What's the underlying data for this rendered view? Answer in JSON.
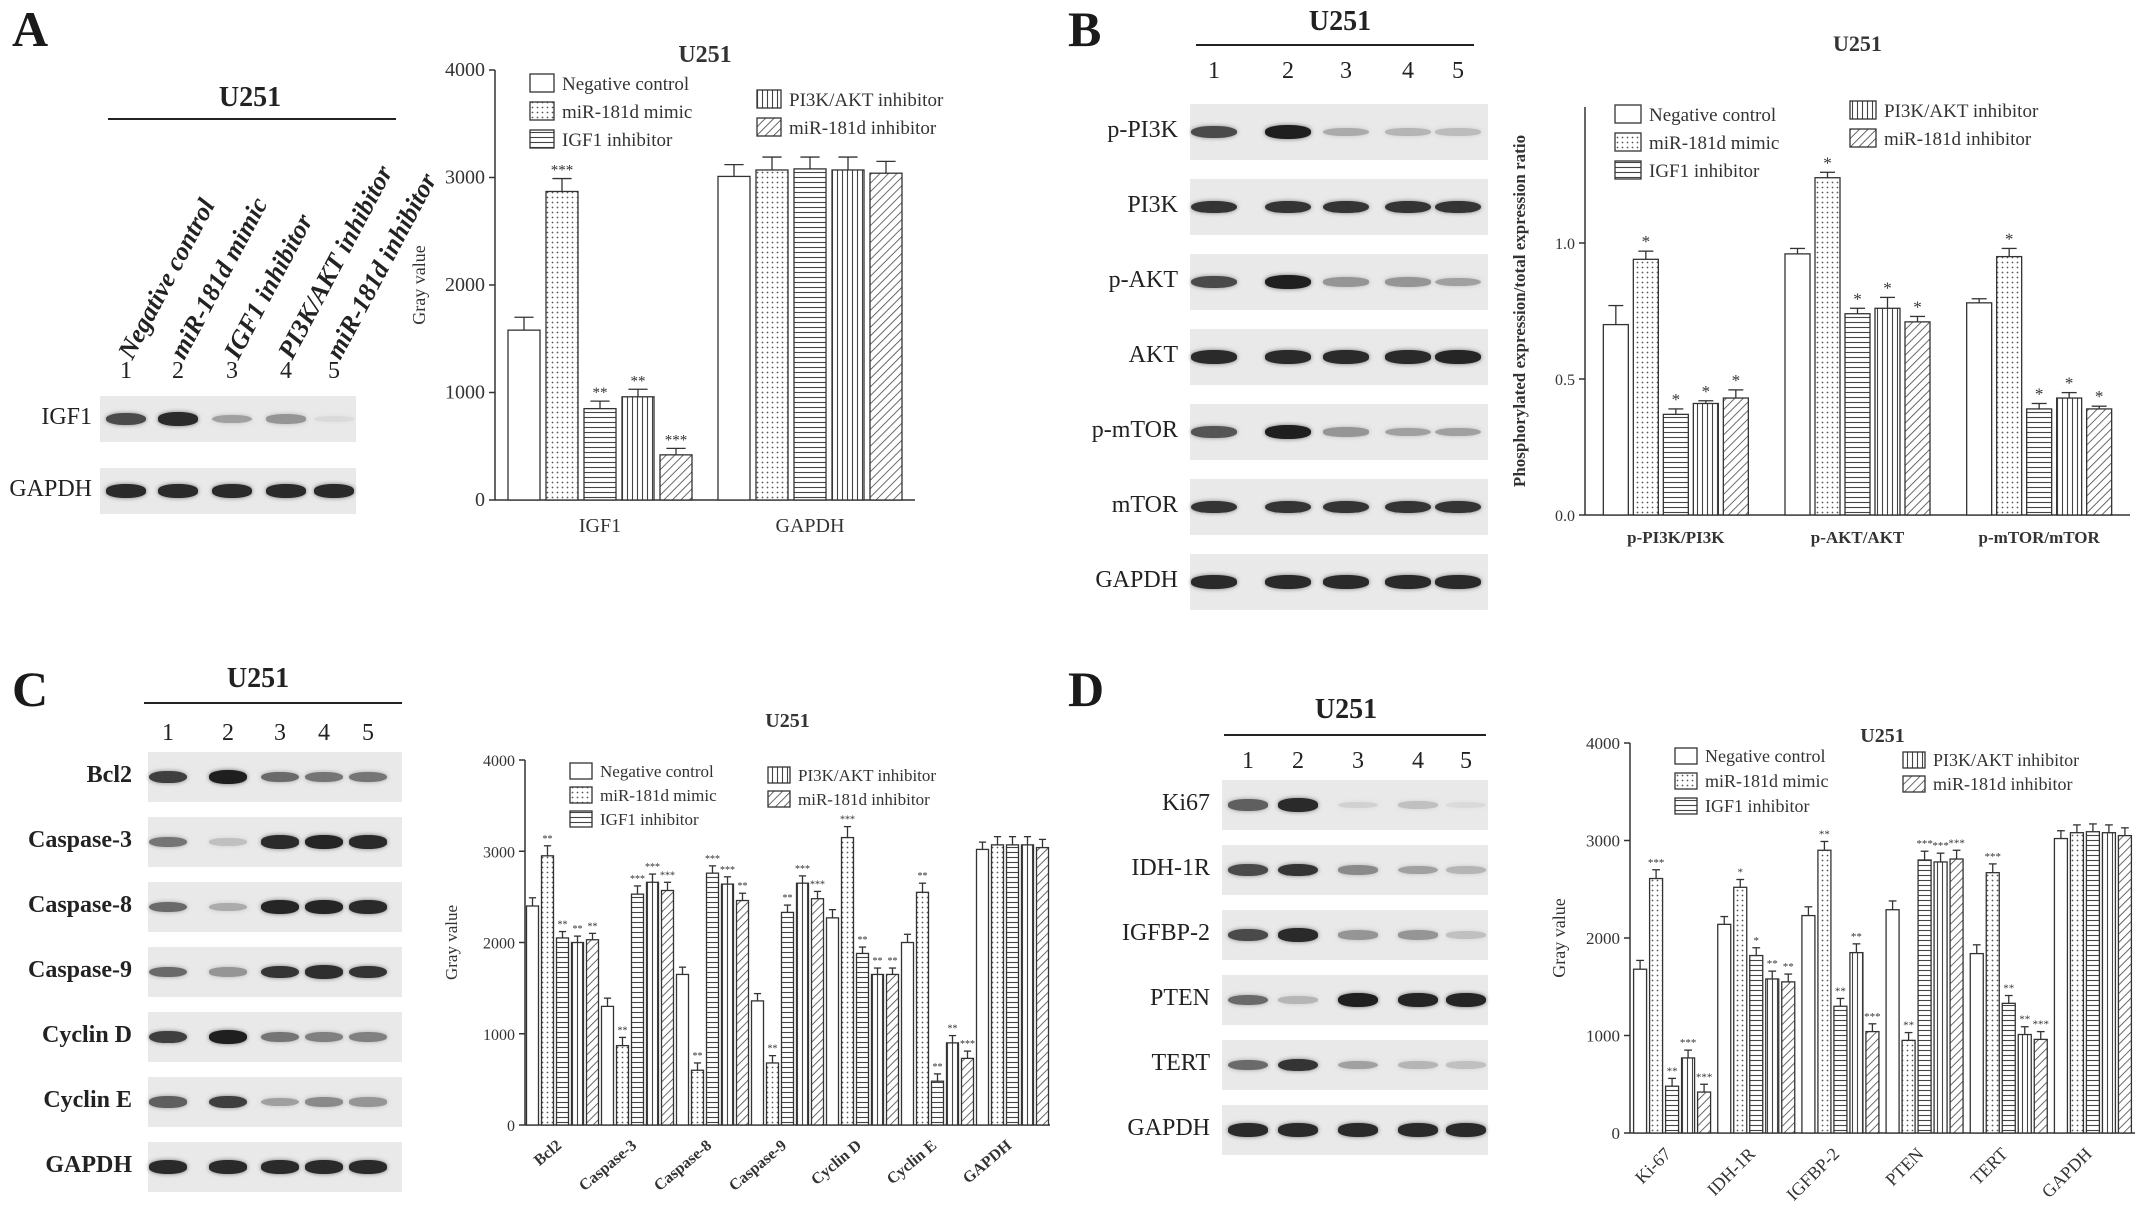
{
  "panels": {
    "A": {
      "letter": "A",
      "blot": {
        "cell_line": "U251",
        "lane_labels": [
          "Negative control",
          "miR-181d mimic",
          "IGF1 inhibitor",
          "PI3K/AKT inhibitor",
          "miR-181d inhibitor"
        ],
        "lane_numbers": [
          "1",
          "2",
          "3",
          "4",
          "5"
        ],
        "proteins": [
          {
            "name": "IGF1",
            "band_intensity": [
              0.75,
              0.9,
              0.35,
              0.4,
              0.08
            ]
          },
          {
            "name": "GAPDH",
            "band_intensity": [
              0.9,
              0.9,
              0.9,
              0.9,
              0.9
            ]
          }
        ]
      }
    },
    "B": {
      "letter": "B",
      "blot": {
        "cell_line": "U251",
        "lane_numbers": [
          "1",
          "2",
          "3",
          "4",
          "5"
        ],
        "proteins": [
          {
            "name": "p-PI3K",
            "band_intensity": [
              0.75,
              0.95,
              0.3,
              0.25,
              0.22
            ]
          },
          {
            "name": "PI3K",
            "band_intensity": [
              0.85,
              0.85,
              0.85,
              0.85,
              0.85
            ]
          },
          {
            "name": "p-AKT",
            "band_intensity": [
              0.75,
              0.95,
              0.4,
              0.4,
              0.35
            ]
          },
          {
            "name": "AKT",
            "band_intensity": [
              0.9,
              0.9,
              0.9,
              0.9,
              0.92
            ]
          },
          {
            "name": "p-mTOR",
            "band_intensity": [
              0.7,
              0.95,
              0.4,
              0.35,
              0.35
            ]
          },
          {
            "name": "mTOR",
            "band_intensity": [
              0.85,
              0.85,
              0.85,
              0.85,
              0.85
            ]
          },
          {
            "name": "GAPDH",
            "band_intensity": [
              0.9,
              0.9,
              0.9,
              0.9,
              0.9
            ]
          }
        ]
      }
    },
    "C": {
      "letter": "C",
      "blot": {
        "cell_line": "U251",
        "lane_numbers": [
          "1",
          "2",
          "3",
          "4",
          "5"
        ],
        "proteins": [
          {
            "name": "Bcl2",
            "band_intensity": [
              0.8,
              0.95,
              0.6,
              0.55,
              0.55
            ]
          },
          {
            "name": "Caspase-3",
            "band_intensity": [
              0.55,
              0.2,
              0.9,
              0.92,
              0.9
            ]
          },
          {
            "name": "Caspase-8",
            "band_intensity": [
              0.6,
              0.3,
              0.92,
              0.92,
              0.9
            ]
          },
          {
            "name": "Caspase-9",
            "band_intensity": [
              0.6,
              0.4,
              0.85,
              0.88,
              0.85
            ]
          },
          {
            "name": "Cyclin D",
            "band_intensity": [
              0.8,
              0.95,
              0.55,
              0.5,
              0.5
            ]
          },
          {
            "name": "Cyclin E",
            "band_intensity": [
              0.65,
              0.8,
              0.35,
              0.45,
              0.4
            ]
          },
          {
            "name": "GAPDH",
            "band_intensity": [
              0.9,
              0.9,
              0.9,
              0.9,
              0.9
            ]
          }
        ]
      }
    },
    "D": {
      "letter": "D",
      "blot": {
        "cell_line": "U251",
        "lane_numbers": [
          "1",
          "2",
          "3",
          "4",
          "5"
        ],
        "proteins": [
          {
            "name": "Ki67",
            "band_intensity": [
              0.65,
              0.9,
              0.12,
              0.2,
              0.08
            ]
          },
          {
            "name": "IDH-1R",
            "band_intensity": [
              0.75,
              0.85,
              0.45,
              0.35,
              0.25
            ]
          },
          {
            "name": "IGFBP-2",
            "band_intensity": [
              0.75,
              0.9,
              0.4,
              0.4,
              0.2
            ]
          },
          {
            "name": "PTEN",
            "band_intensity": [
              0.6,
              0.25,
              0.95,
              0.92,
              0.92
            ]
          },
          {
            "name": "TERT",
            "band_intensity": [
              0.6,
              0.85,
              0.35,
              0.25,
              0.2
            ]
          },
          {
            "name": "GAPDH",
            "band_intensity": [
              0.9,
              0.9,
              0.9,
              0.9,
              0.9
            ]
          }
        ]
      }
    }
  },
  "series_colors": {
    "Negative control": "#ffffff",
    "miR-181d mimic": "#ffffff",
    "IGF1 inhibitor": "#ffffff",
    "PI3K/AKT inhibitor": "#ffffff",
    "miR-181d inhibitor": "#ffffff"
  },
  "series_patterns": [
    "none",
    "dots",
    "hlines",
    "vlines",
    "diag"
  ],
  "chart_data": [
    {
      "panel": "A",
      "type": "bar",
      "title": "U251",
      "ylabel": "Gray value",
      "xlabel": "",
      "ylim": [
        0,
        4000
      ],
      "yticks": [
        0,
        1000,
        2000,
        3000,
        4000
      ],
      "categories": [
        "IGF1",
        "GAPDH"
      ],
      "series": [
        {
          "name": "Negative control",
          "values": [
            1580,
            3010
          ],
          "errors": [
            120,
            110
          ],
          "sig": [
            "",
            ""
          ]
        },
        {
          "name": "miR-181d mimic",
          "values": [
            2870,
            3070
          ],
          "errors": [
            120,
            120
          ],
          "sig": [
            "***",
            ""
          ]
        },
        {
          "name": "IGF1 inhibitor",
          "values": [
            850,
            3080
          ],
          "errors": [
            70,
            110
          ],
          "sig": [
            "**",
            ""
          ]
        },
        {
          "name": "PI3K/AKT inhibitor",
          "values": [
            960,
            3070
          ],
          "errors": [
            70,
            120
          ],
          "sig": [
            "**",
            ""
          ]
        },
        {
          "name": "miR-181d inhibitor",
          "values": [
            420,
            3040
          ],
          "errors": [
            60,
            110
          ],
          "sig": [
            "***",
            ""
          ]
        }
      ],
      "legend": "top"
    },
    {
      "panel": "B",
      "type": "bar",
      "title": "U251",
      "ylabel": "Phosphorylated expression/total expression ratio",
      "xlabel": "",
      "ylim": [
        0,
        1.5
      ],
      "yticks": [
        0.0,
        0.5,
        1.0
      ],
      "ytick_labels": [
        "0.0",
        "0.5",
        "1.0"
      ],
      "categories": [
        "p-PI3K/PI3K",
        "p-AKT/AKT",
        "p-mTOR/mTOR"
      ],
      "series": [
        {
          "name": "Negative control",
          "values": [
            0.7,
            0.96,
            0.78
          ],
          "errors": [
            0.07,
            0.02,
            0.015
          ],
          "sig": [
            "",
            "",
            ""
          ]
        },
        {
          "name": "miR-181d mimic",
          "values": [
            0.94,
            1.24,
            0.95
          ],
          "errors": [
            0.03,
            0.02,
            0.03
          ],
          "sig": [
            "*",
            "*",
            "*"
          ]
        },
        {
          "name": "IGF1 inhibitor",
          "values": [
            0.37,
            0.74,
            0.39
          ],
          "errors": [
            0.02,
            0.02,
            0.02
          ],
          "sig": [
            "*",
            "*",
            "*"
          ]
        },
        {
          "name": "PI3K/AKT inhibitor",
          "values": [
            0.41,
            0.76,
            0.43
          ],
          "errors": [
            0.01,
            0.04,
            0.02
          ],
          "sig": [
            "*",
            "*",
            "*"
          ]
        },
        {
          "name": "miR-181d inhibitor",
          "values": [
            0.43,
            0.71,
            0.39
          ],
          "errors": [
            0.03,
            0.02,
            0.01
          ],
          "sig": [
            "*",
            "*",
            "*"
          ]
        }
      ],
      "legend": "top"
    },
    {
      "panel": "C",
      "type": "bar",
      "title": "U251",
      "ylabel": "Gray value",
      "xlabel": "",
      "ylim": [
        0,
        4000
      ],
      "yticks": [
        0,
        1000,
        2000,
        3000,
        4000
      ],
      "categories": [
        "Bcl2",
        "Caspase-3",
        "Caspase-8",
        "Caspase-9",
        "Cyclin D",
        "Cyclin E",
        "GAPDH"
      ],
      "series": [
        {
          "name": "Negative control",
          "values": [
            2400,
            1300,
            1650,
            1360,
            2270,
            2000,
            3020
          ],
          "errors": [
            90,
            90,
            80,
            80,
            90,
            90,
            80
          ],
          "sig": [
            "",
            "",
            "",
            "",
            "",
            "",
            ""
          ]
        },
        {
          "name": "miR-181d mimic",
          "values": [
            2950,
            870,
            600,
            680,
            3150,
            2550,
            3070
          ],
          "errors": [
            110,
            90,
            80,
            80,
            120,
            100,
            90
          ],
          "sig": [
            "**",
            "**",
            "**",
            "**",
            "***",
            "**",
            ""
          ]
        },
        {
          "name": "IGF1 inhibitor",
          "values": [
            2050,
            2530,
            2760,
            2330,
            1880,
            480,
            3070
          ],
          "errors": [
            70,
            90,
            80,
            80,
            70,
            80,
            90
          ],
          "sig": [
            "**",
            "***",
            "***",
            "**",
            "**",
            "**",
            ""
          ]
        },
        {
          "name": "PI3K/AKT inhibitor",
          "values": [
            2000,
            2660,
            2640,
            2650,
            1650,
            900,
            3070
          ],
          "errors": [
            70,
            90,
            80,
            80,
            70,
            80,
            90
          ],
          "sig": [
            "**",
            "***",
            "***",
            "***",
            "**",
            "**",
            ""
          ]
        },
        {
          "name": "miR-181d inhibitor",
          "values": [
            2030,
            2570,
            2460,
            2480,
            1650,
            730,
            3040
          ],
          "errors": [
            70,
            90,
            80,
            80,
            70,
            80,
            90
          ],
          "sig": [
            "**",
            "***",
            "**",
            "***",
            "**",
            "***",
            ""
          ]
        }
      ],
      "legend": "top"
    },
    {
      "panel": "D",
      "type": "bar",
      "title": "U251",
      "ylabel": "Gray value",
      "xlabel": "",
      "ylim": [
        0,
        4000
      ],
      "yticks": [
        0,
        1000,
        2000,
        3000,
        4000
      ],
      "categories": [
        "Ki-67",
        "IDH-1R",
        "IGFBP-2",
        "PTEN",
        "TERT",
        "GAPDH"
      ],
      "series": [
        {
          "name": "Negative control",
          "values": [
            1680,
            2140,
            2230,
            2290,
            1840,
            3020
          ],
          "errors": [
            90,
            80,
            90,
            90,
            90,
            80
          ],
          "sig": [
            "",
            "",
            "",
            "",
            "",
            ""
          ]
        },
        {
          "name": "miR-181d mimic",
          "values": [
            2610,
            2520,
            2900,
            950,
            2670,
            3080
          ],
          "errors": [
            90,
            80,
            90,
            80,
            90,
            80
          ],
          "sig": [
            "***",
            "*",
            "**",
            "**",
            "***",
            ""
          ]
        },
        {
          "name": "IGF1 inhibitor",
          "values": [
            480,
            1820,
            1300,
            2800,
            1330,
            3090
          ],
          "errors": [
            80,
            80,
            80,
            90,
            80,
            80
          ],
          "sig": [
            "**",
            "*",
            "**",
            "***",
            "**",
            ""
          ]
        },
        {
          "name": "PI3K/AKT inhibitor",
          "values": [
            770,
            1580,
            1850,
            2780,
            1010,
            3080
          ],
          "errors": [
            80,
            80,
            90,
            90,
            80,
            80
          ],
          "sig": [
            "***",
            "**",
            "**",
            "***",
            "**",
            ""
          ]
        },
        {
          "name": "miR-181d inhibitor",
          "values": [
            420,
            1550,
            1040,
            2810,
            960,
            3050
          ],
          "errors": [
            80,
            80,
            80,
            90,
            80,
            80
          ],
          "sig": [
            "***",
            "**",
            "***",
            "***",
            "***",
            ""
          ]
        }
      ],
      "legend": "top"
    }
  ]
}
